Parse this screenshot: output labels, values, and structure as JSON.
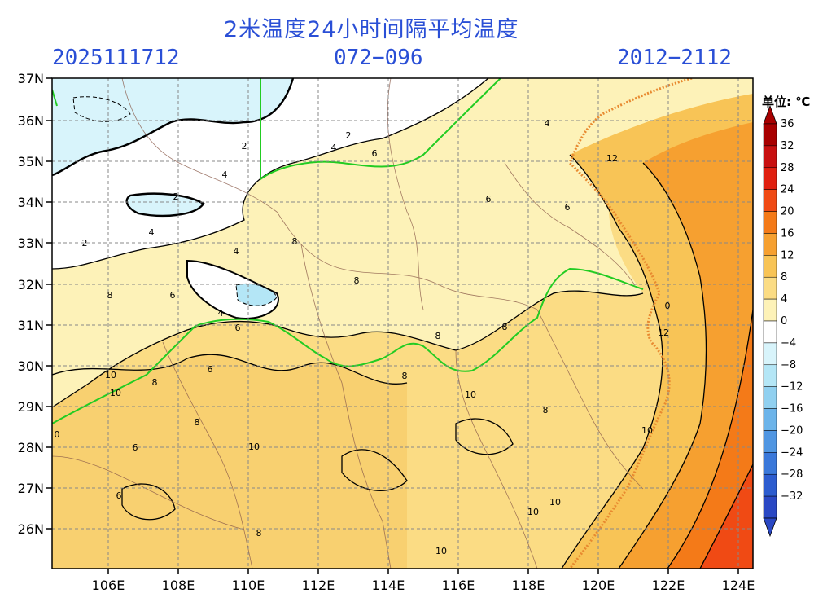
{
  "header": {
    "title": "2米温度24小时间隔平均温度",
    "run_time": "2025111712",
    "forecast_range": "072−096",
    "valid_range": "2012−2112"
  },
  "colorbar": {
    "unit": "单位: ℃",
    "levels": [
      "36",
      "32",
      "28",
      "24",
      "20",
      "16",
      "12",
      "8",
      "4",
      "0",
      "−4",
      "−8",
      "−12",
      "−16",
      "−20",
      "−24",
      "−28",
      "−32"
    ],
    "colors": [
      "#a80000",
      "#c81010",
      "#e02010",
      "#f04a14",
      "#f47a18",
      "#f6a030",
      "#f8c456",
      "#fbdc84",
      "#fdf2b8",
      "#ffffff",
      "#d8f4fb",
      "#b4e6f6",
      "#90d0f0",
      "#6cb4ea",
      "#5096e2",
      "#3a78da",
      "#2c5ccf",
      "#2a48c4"
    ]
  },
  "map": {
    "lon_labels": [
      "106E",
      "108E",
      "110E",
      "112E",
      "114E",
      "116E",
      "118E",
      "120E",
      "122E",
      "124E"
    ],
    "lat_labels": [
      "37N",
      "36N",
      "35N",
      "34N",
      "33N",
      "32N",
      "31N",
      "30N",
      "29N",
      "28N",
      "27N",
      "26N"
    ],
    "contour_labels": [
      "12",
      "12",
      "10",
      "10",
      "10",
      "10",
      "10",
      "10",
      "10",
      "10",
      "8",
      "8",
      "8",
      "8",
      "8",
      "8",
      "8",
      "8",
      "8",
      "8",
      "6",
      "6",
      "6",
      "6",
      "6",
      "6",
      "6",
      "6",
      "4",
      "4",
      "4",
      "4",
      "4",
      "4",
      "2",
      "2",
      "2",
      "2",
      "0",
      "0"
    ]
  }
}
